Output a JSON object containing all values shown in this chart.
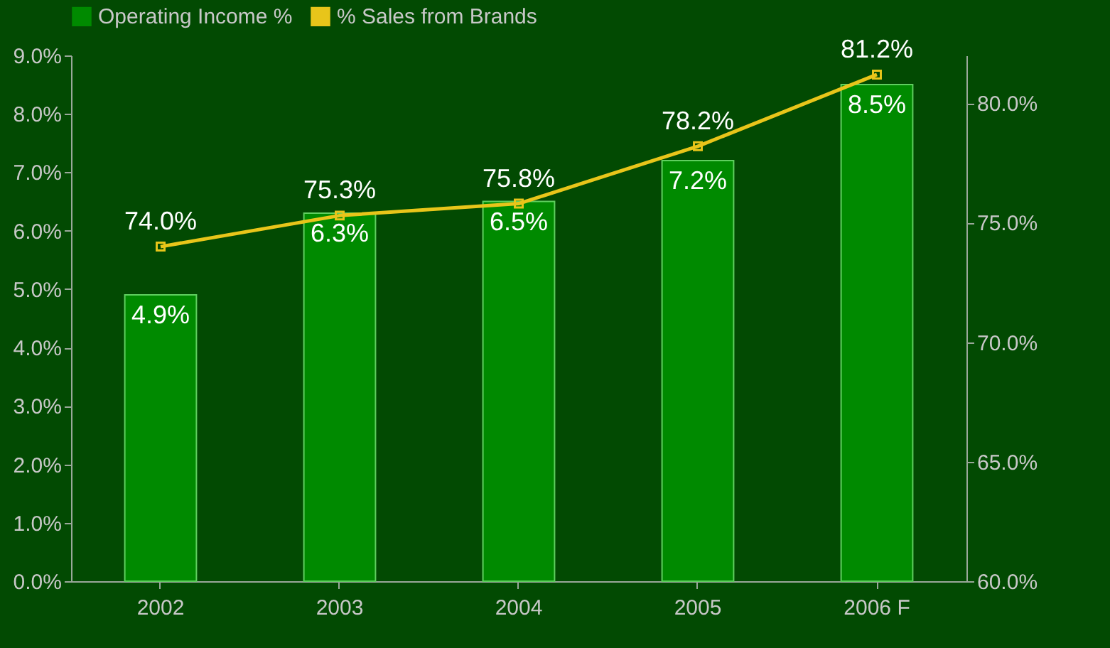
{
  "chart_data": {
    "type": "bar",
    "categories": [
      "2002",
      "2003",
      "2004",
      "2005",
      "2006 F"
    ],
    "series": [
      {
        "name": "Operating Income %",
        "color": "#008a00",
        "values": [
          4.9,
          6.3,
          6.5,
          7.2,
          8.5
        ],
        "value_labels": [
          "4.9%",
          "6.3%",
          "6.5%",
          "7.2%",
          "8.5%"
        ]
      },
      {
        "name": "% Sales from Brands",
        "type": "line",
        "axis": "y2",
        "color": "#e8c51a",
        "values": [
          74.0,
          75.3,
          75.8,
          78.2,
          81.2
        ],
        "value_labels": [
          "74.0%",
          "75.3%",
          "75.8%",
          "78.2%",
          "81.2%"
        ]
      }
    ],
    "ylim": [
      0,
      9
    ],
    "yticks": [
      {
        "value": 0,
        "label": "0.0%"
      },
      {
        "value": 1,
        "label": "1.0%"
      },
      {
        "value": 2,
        "label": "2.0%"
      },
      {
        "value": 3,
        "label": "3.0%"
      },
      {
        "value": 4,
        "label": "4.0%"
      },
      {
        "value": 5,
        "label": "5.0%"
      },
      {
        "value": 6,
        "label": "6.0%"
      },
      {
        "value": 7,
        "label": "7.0%"
      },
      {
        "value": 8,
        "label": "8.0%"
      },
      {
        "value": 9,
        "label": "9.0%"
      }
    ],
    "y2lim": [
      60,
      82
    ],
    "y2ticks": [
      {
        "value": 60,
        "label": "60.0%"
      },
      {
        "value": 65,
        "label": "65.0%"
      },
      {
        "value": 70,
        "label": "70.0%"
      },
      {
        "value": 75,
        "label": "75.0%"
      },
      {
        "value": 80,
        "label": "80.0%"
      }
    ],
    "legend": "top",
    "marker": "square",
    "line_style": "solid",
    "grid": false
  }
}
